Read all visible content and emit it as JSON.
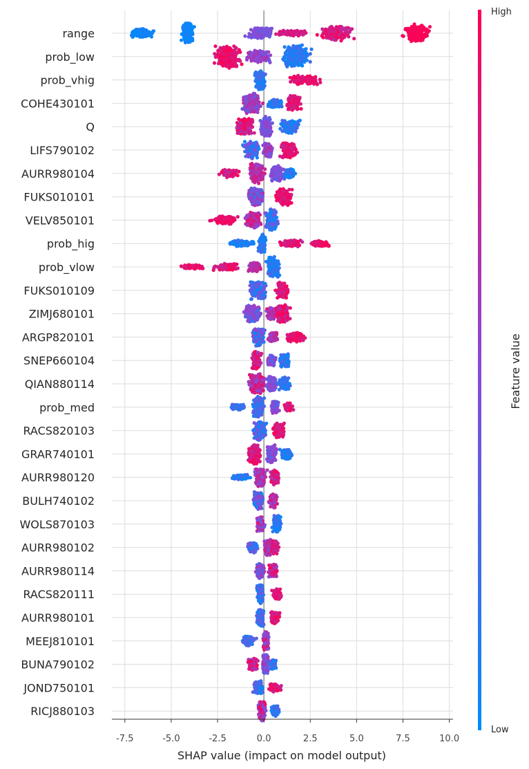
{
  "chart_data": {
    "type": "scatter",
    "subtype": "shap-beeswarm",
    "xlabel": "SHAP value (impact on model output)",
    "x_ticks": [
      -7.5,
      -5.0,
      -2.5,
      0.0,
      2.5,
      5.0,
      7.5,
      10.0
    ],
    "xlim": [
      -8.2,
      10.2
    ],
    "grid": true,
    "colorbar": {
      "label": "Feature value",
      "high_label": "High",
      "low_label": "Low",
      "low_color": "#008bfb",
      "high_color": "#ff0052"
    },
    "features": [
      {
        "name": "range",
        "min": -7.4,
        "max": 9.4,
        "high_side": "right",
        "clusters": [
          {
            "c": -6.6,
            "w": 1.3,
            "h": 7,
            "lo": 0.0,
            "hi": 0.1
          },
          {
            "c": -4.1,
            "w": 0.6,
            "h": 15,
            "lo": 0.0,
            "hi": 0.1
          },
          {
            "c": -0.2,
            "w": 1.3,
            "h": 9,
            "lo": 0.35,
            "hi": 0.6
          },
          {
            "c": 1.5,
            "w": 1.7,
            "h": 4,
            "lo": 0.7,
            "hi": 0.9
          },
          {
            "c": 3.9,
            "w": 1.9,
            "h": 11,
            "lo": 0.7,
            "hi": 1.0
          },
          {
            "c": 8.3,
            "w": 1.3,
            "h": 13,
            "lo": 0.95,
            "hi": 1.0
          }
        ]
      },
      {
        "name": "prob_low",
        "min": -3.4,
        "max": 3.1,
        "high_side": "left",
        "clusters": [
          {
            "c": -1.9,
            "w": 1.5,
            "h": 17,
            "lo": 0.8,
            "hi": 1.0
          },
          {
            "c": -0.3,
            "w": 1.3,
            "h": 9,
            "lo": 0.4,
            "hi": 0.7
          },
          {
            "c": 1.7,
            "w": 1.4,
            "h": 17,
            "lo": 0.0,
            "hi": 0.25
          }
        ]
      },
      {
        "name": "prob_vhig",
        "min": -0.7,
        "max": 3.9,
        "high_side": "right",
        "clusters": [
          {
            "c": -0.2,
            "w": 0.5,
            "h": 15,
            "lo": 0.0,
            "hi": 0.3
          },
          {
            "c": 2.2,
            "w": 1.7,
            "h": 7,
            "lo": 0.8,
            "hi": 1.0
          }
        ]
      },
      {
        "name": "COHE430101",
        "min": -1.7,
        "max": 2.5,
        "high_side": "right",
        "clusters": [
          {
            "c": -0.6,
            "w": 1.0,
            "h": 15,
            "lo": 0.3,
            "hi": 0.8
          },
          {
            "c": 0.6,
            "w": 0.8,
            "h": 6,
            "lo": 0.0,
            "hi": 0.3
          },
          {
            "c": 1.6,
            "w": 0.8,
            "h": 12,
            "lo": 0.75,
            "hi": 1.0
          }
        ]
      },
      {
        "name": "Q",
        "min": -2.1,
        "max": 2.5,
        "high_side": "left",
        "clusters": [
          {
            "c": -1.0,
            "w": 1.0,
            "h": 12,
            "lo": 0.6,
            "hi": 1.0
          },
          {
            "c": 0.1,
            "w": 0.6,
            "h": 15,
            "lo": 0.3,
            "hi": 0.6
          },
          {
            "c": 1.4,
            "w": 1.0,
            "h": 10,
            "lo": 0.0,
            "hi": 0.3
          }
        ]
      },
      {
        "name": "LIFS790102",
        "min": -2.0,
        "max": 2.2,
        "high_side": "right",
        "clusters": [
          {
            "c": -0.7,
            "w": 0.8,
            "h": 14,
            "lo": 0.0,
            "hi": 0.5
          },
          {
            "c": 0.2,
            "w": 0.5,
            "h": 10,
            "lo": 0.4,
            "hi": 0.7
          },
          {
            "c": 1.3,
            "w": 0.8,
            "h": 12,
            "lo": 0.75,
            "hi": 1.0
          }
        ]
      },
      {
        "name": "AURR980104",
        "min": -2.9,
        "max": 2.0,
        "high_side": "left",
        "clusters": [
          {
            "c": -1.9,
            "w": 1.0,
            "h": 6,
            "lo": 0.7,
            "hi": 1.0
          },
          {
            "c": -0.4,
            "w": 0.9,
            "h": 15,
            "lo": 0.5,
            "hi": 0.9
          },
          {
            "c": 0.7,
            "w": 0.7,
            "h": 12,
            "lo": 0.3,
            "hi": 0.6
          },
          {
            "c": 1.4,
            "w": 0.6,
            "h": 7,
            "lo": 0.0,
            "hi": 0.3
          }
        ]
      },
      {
        "name": "FUKS010101",
        "min": -1.6,
        "max": 2.1,
        "high_side": "right",
        "clusters": [
          {
            "c": -0.4,
            "w": 0.9,
            "h": 14,
            "lo": 0.2,
            "hi": 0.7
          },
          {
            "c": 1.1,
            "w": 0.9,
            "h": 12,
            "lo": 0.75,
            "hi": 1.0
          }
        ]
      },
      {
        "name": "VELV850101",
        "min": -3.4,
        "max": 1.3,
        "high_side": "left",
        "clusters": [
          {
            "c": -2.1,
            "w": 1.2,
            "h": 6,
            "lo": 0.8,
            "hi": 1.0
          },
          {
            "c": -0.6,
            "w": 0.9,
            "h": 12,
            "lo": 0.5,
            "hi": 0.9
          },
          {
            "c": 0.4,
            "w": 0.6,
            "h": 17,
            "lo": 0.0,
            "hi": 0.45
          }
        ]
      },
      {
        "name": "prob_hig",
        "min": -2.4,
        "max": 4.0,
        "high_side": "right",
        "clusters": [
          {
            "c": -1.2,
            "w": 1.2,
            "h": 5,
            "lo": 0.0,
            "hi": 0.2
          },
          {
            "c": -0.1,
            "w": 0.4,
            "h": 14,
            "lo": 0.0,
            "hi": 0.3
          },
          {
            "c": 1.5,
            "w": 1.2,
            "h": 5,
            "lo": 0.7,
            "hi": 1.0
          },
          {
            "c": 3.0,
            "w": 1.0,
            "h": 4,
            "lo": 0.8,
            "hi": 1.0
          }
        ]
      },
      {
        "name": "prob_vlow",
        "min": -5.2,
        "max": 1.3,
        "high_side": "left",
        "clusters": [
          {
            "c": -3.9,
            "w": 1.3,
            "h": 3,
            "lo": 0.8,
            "hi": 1.0
          },
          {
            "c": -2.0,
            "w": 1.3,
            "h": 5,
            "lo": 0.75,
            "hi": 1.0
          },
          {
            "c": -0.5,
            "w": 0.7,
            "h": 7,
            "lo": 0.5,
            "hi": 0.8
          },
          {
            "c": 0.5,
            "w": 0.6,
            "h": 15,
            "lo": 0.0,
            "hi": 0.3
          }
        ]
      },
      {
        "name": "FUKS010109",
        "min": -1.7,
        "max": 1.8,
        "high_side": "right",
        "clusters": [
          {
            "c": -0.3,
            "w": 0.8,
            "h": 14,
            "lo": 0.0,
            "hi": 0.5
          },
          {
            "c": 1.0,
            "w": 0.7,
            "h": 12,
            "lo": 0.75,
            "hi": 1.0
          }
        ]
      },
      {
        "name": "ZIMJ680101",
        "min": -2.1,
        "max": 1.9,
        "high_side": "right",
        "clusters": [
          {
            "c": -0.6,
            "w": 0.8,
            "h": 13,
            "lo": 0.2,
            "hi": 0.6
          },
          {
            "c": 0.4,
            "w": 0.5,
            "h": 9,
            "lo": 0.5,
            "hi": 0.8
          },
          {
            "c": 1.0,
            "w": 0.7,
            "h": 14,
            "lo": 0.7,
            "hi": 1.0
          }
        ]
      },
      {
        "name": "ARGP820101",
        "min": -1.3,
        "max": 2.8,
        "high_side": "right",
        "clusters": [
          {
            "c": -0.3,
            "w": 0.6,
            "h": 13,
            "lo": 0.0,
            "hi": 0.6
          },
          {
            "c": 0.5,
            "w": 0.5,
            "h": 7,
            "lo": 0.5,
            "hi": 0.8
          },
          {
            "c": 1.7,
            "w": 1.0,
            "h": 7,
            "lo": 0.8,
            "hi": 1.0
          }
        ]
      },
      {
        "name": "SNEP660104",
        "min": -1.0,
        "max": 1.6,
        "high_side": "left",
        "clusters": [
          {
            "c": -0.4,
            "w": 0.5,
            "h": 14,
            "lo": 0.6,
            "hi": 1.0
          },
          {
            "c": 0.4,
            "w": 0.4,
            "h": 8,
            "lo": 0.3,
            "hi": 0.6
          },
          {
            "c": 1.1,
            "w": 0.5,
            "h": 10,
            "lo": 0.0,
            "hi": 0.3
          }
        ]
      },
      {
        "name": "QIAN880114",
        "min": -1.3,
        "max": 1.7,
        "high_side": "left",
        "clusters": [
          {
            "c": -0.4,
            "w": 0.8,
            "h": 15,
            "lo": 0.5,
            "hi": 1.0
          },
          {
            "c": 0.4,
            "w": 0.5,
            "h": 11,
            "lo": 0.3,
            "hi": 0.6
          },
          {
            "c": 1.1,
            "w": 0.6,
            "h": 10,
            "lo": 0.0,
            "hi": 0.3
          }
        ]
      },
      {
        "name": "prob_med",
        "min": -2.2,
        "max": 1.8,
        "high_side": "right",
        "clusters": [
          {
            "c": -1.4,
            "w": 0.8,
            "h": 4,
            "lo": 0.0,
            "hi": 0.3
          },
          {
            "c": -0.3,
            "w": 0.6,
            "h": 16,
            "lo": 0.0,
            "hi": 0.4
          },
          {
            "c": 0.6,
            "w": 0.4,
            "h": 9,
            "lo": 0.3,
            "hi": 0.6
          },
          {
            "c": 1.3,
            "w": 0.5,
            "h": 6,
            "lo": 0.75,
            "hi": 1.0
          }
        ]
      },
      {
        "name": "RACS820103",
        "min": -0.9,
        "max": 1.6,
        "high_side": "right",
        "clusters": [
          {
            "c": -0.2,
            "w": 0.6,
            "h": 14,
            "lo": 0.0,
            "hi": 0.5
          },
          {
            "c": 0.8,
            "w": 0.6,
            "h": 11,
            "lo": 0.7,
            "hi": 1.0
          }
        ]
      },
      {
        "name": "GRAR740101",
        "min": -1.3,
        "max": 1.8,
        "high_side": "left",
        "clusters": [
          {
            "c": -0.5,
            "w": 0.7,
            "h": 15,
            "lo": 0.65,
            "hi": 1.0
          },
          {
            "c": 0.4,
            "w": 0.5,
            "h": 13,
            "lo": 0.3,
            "hi": 0.65
          },
          {
            "c": 1.2,
            "w": 0.6,
            "h": 8,
            "lo": 0.0,
            "hi": 0.3
          }
        ]
      },
      {
        "name": "AURR980120",
        "min": -2.3,
        "max": 1.2,
        "high_side": "left",
        "clusters": [
          {
            "c": -1.2,
            "w": 0.9,
            "h": 4,
            "lo": 0.0,
            "hi": 0.3
          },
          {
            "c": -0.2,
            "w": 0.6,
            "h": 14,
            "lo": 0.4,
            "hi": 0.8
          },
          {
            "c": 0.6,
            "w": 0.5,
            "h": 11,
            "lo": 0.6,
            "hi": 1.0
          }
        ]
      },
      {
        "name": "BULH740102",
        "min": -1.0,
        "max": 1.0,
        "high_side": "right",
        "clusters": [
          {
            "c": -0.3,
            "w": 0.5,
            "h": 13,
            "lo": 0.0,
            "hi": 0.6
          },
          {
            "c": 0.5,
            "w": 0.4,
            "h": 11,
            "lo": 0.5,
            "hi": 1.0
          }
        ]
      },
      {
        "name": "WOLS870103",
        "min": -0.8,
        "max": 1.3,
        "high_side": "left",
        "clusters": [
          {
            "c": -0.2,
            "w": 0.4,
            "h": 11,
            "lo": 0.4,
            "hi": 1.0
          },
          {
            "c": 0.7,
            "w": 0.4,
            "h": 13,
            "lo": 0.0,
            "hi": 0.3
          }
        ]
      },
      {
        "name": "AURR980102",
        "min": -1.3,
        "max": 1.0,
        "high_side": "right",
        "clusters": [
          {
            "c": -0.6,
            "w": 0.5,
            "h": 8,
            "lo": 0.0,
            "hi": 0.5
          },
          {
            "c": 0.2,
            "w": 0.4,
            "h": 12,
            "lo": 0.4,
            "hi": 0.8
          },
          {
            "c": 0.6,
            "w": 0.4,
            "h": 10,
            "lo": 0.7,
            "hi": 1.0
          }
        ]
      },
      {
        "name": "AURR980114",
        "min": -0.8,
        "max": 1.0,
        "high_side": "right",
        "clusters": [
          {
            "c": -0.2,
            "w": 0.4,
            "h": 11,
            "lo": 0.3,
            "hi": 0.7
          },
          {
            "c": 0.5,
            "w": 0.4,
            "h": 11,
            "lo": 0.5,
            "hi": 1.0
          }
        ]
      },
      {
        "name": "RACS820111",
        "min": -0.7,
        "max": 1.3,
        "high_side": "right",
        "clusters": [
          {
            "c": -0.2,
            "w": 0.3,
            "h": 14,
            "lo": 0.0,
            "hi": 0.4
          },
          {
            "c": 0.7,
            "w": 0.5,
            "h": 8,
            "lo": 0.75,
            "hi": 1.0
          }
        ]
      },
      {
        "name": "AURR980101",
        "min": -1.0,
        "max": 1.2,
        "high_side": "right",
        "clusters": [
          {
            "c": -0.2,
            "w": 0.4,
            "h": 13,
            "lo": 0.0,
            "hi": 0.5
          },
          {
            "c": 0.6,
            "w": 0.5,
            "h": 9,
            "lo": 0.75,
            "hi": 1.0
          }
        ]
      },
      {
        "name": "MEEJ810101",
        "min": -1.6,
        "max": 0.6,
        "high_side": "right",
        "clusters": [
          {
            "c": -0.8,
            "w": 0.6,
            "h": 8,
            "lo": 0.1,
            "hi": 0.4
          },
          {
            "c": 0.1,
            "w": 0.3,
            "h": 14,
            "lo": 0.3,
            "hi": 0.9
          }
        ]
      },
      {
        "name": "BUNA790102",
        "min": -1.2,
        "max": 0.8,
        "high_side": "left",
        "clusters": [
          {
            "c": -0.6,
            "w": 0.5,
            "h": 9,
            "lo": 0.6,
            "hi": 1.0
          },
          {
            "c": 0.1,
            "w": 0.3,
            "h": 14,
            "lo": 0.3,
            "hi": 0.7
          },
          {
            "c": 0.5,
            "w": 0.3,
            "h": 7,
            "lo": 0.0,
            "hi": 0.3
          }
        ]
      },
      {
        "name": "JOND750101",
        "min": -1.0,
        "max": 1.5,
        "high_side": "right",
        "clusters": [
          {
            "c": -0.3,
            "w": 0.5,
            "h": 10,
            "lo": 0.0,
            "hi": 0.4
          },
          {
            "c": 0.6,
            "w": 0.7,
            "h": 6,
            "lo": 0.75,
            "hi": 1.0
          }
        ]
      },
      {
        "name": "RICJ880103",
        "min": -0.8,
        "max": 1.0,
        "high_side": "left",
        "clusters": [
          {
            "c": -0.1,
            "w": 0.4,
            "h": 14,
            "lo": 0.4,
            "hi": 1.0
          },
          {
            "c": 0.6,
            "w": 0.4,
            "h": 8,
            "lo": 0.0,
            "hi": 0.3
          }
        ]
      }
    ]
  }
}
